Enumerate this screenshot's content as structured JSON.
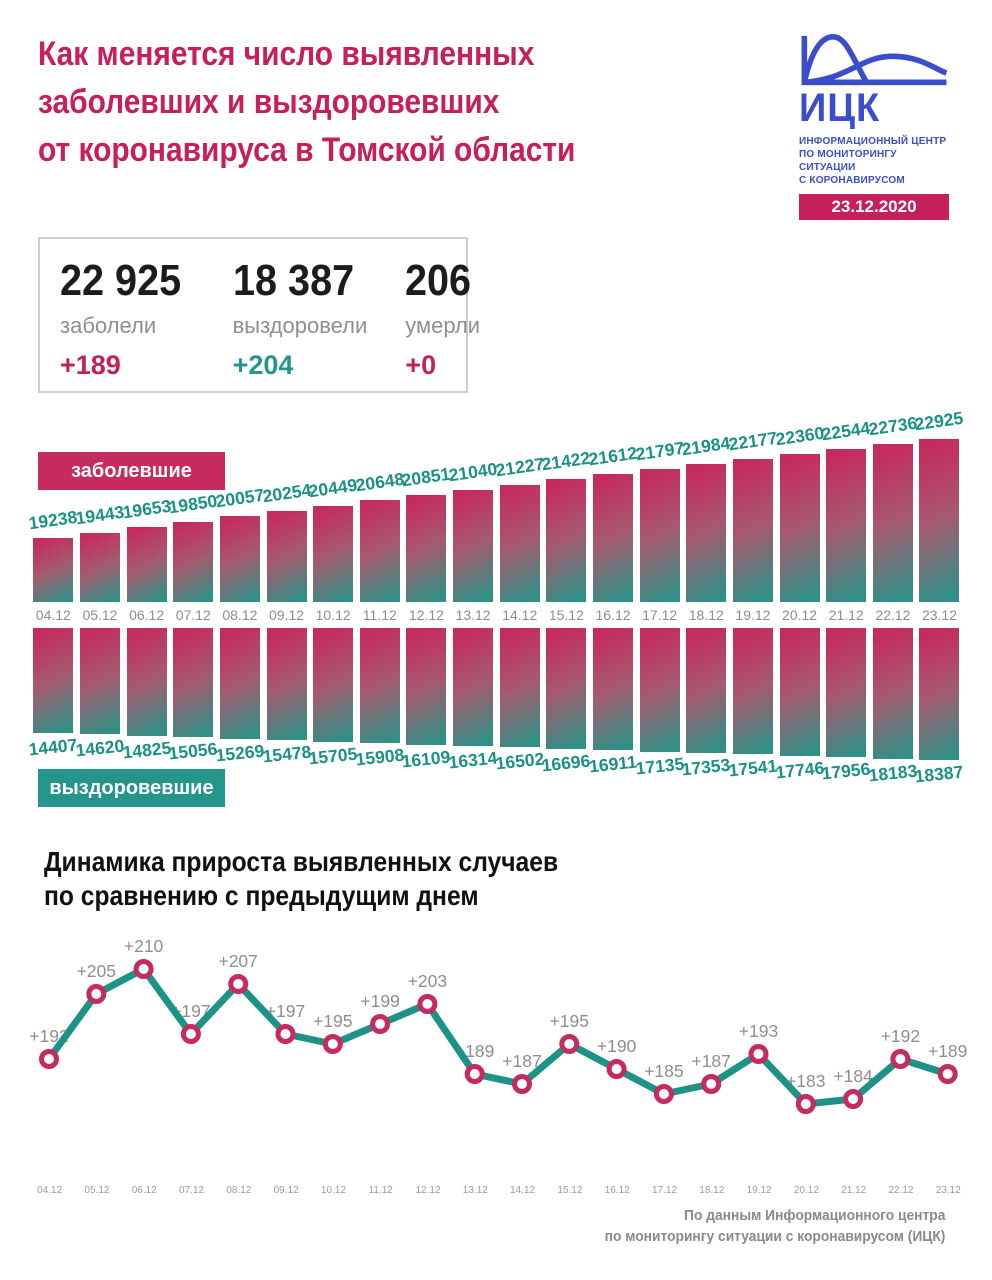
{
  "header": {
    "title_lines": [
      "Как меняется число выявленных",
      "заболевших и выздоровевших",
      "от коронавируса в Томской области"
    ],
    "logo": {
      "abbr": "ИЦК",
      "subtitle_lines": [
        "ИНФОРМАЦИОННЫЙ ЦЕНТР",
        "ПО МОНИТОРИНГУ СИТУАЦИИ",
        "С КОРОНАВИРУСОМ"
      ],
      "date_badge": "23.12.2020"
    }
  },
  "summary_cards": [
    {
      "value": "22 925",
      "label": "заболели",
      "delta": "+189",
      "delta_color": "#c2205a"
    },
    {
      "value": "18 387",
      "label": "выздоровели",
      "delta": "+204",
      "delta_color": "#23958a"
    },
    {
      "value": "206",
      "label": "умерли",
      "delta": "+0",
      "delta_color": "#c2205a"
    }
  ],
  "colors": {
    "crimson": "#c5205b",
    "teal": "#23958a",
    "bar_gradient": [
      "#c52c5e",
      "#a45a6f",
      "#2e9086"
    ],
    "value_label_teal": "#1b9185",
    "logo_blue": "#3a4ecb",
    "gray_text": "#8d8d8d"
  },
  "chart_data": [
    {
      "id": "infected_total",
      "type": "bar",
      "title": "заболевшие",
      "categories": [
        "04.12",
        "05.12",
        "06.12",
        "07.12",
        "08.12",
        "09.12",
        "10.12",
        "11.12",
        "12.12",
        "13.12",
        "14.12",
        "15.12",
        "16.12",
        "17.12",
        "18.12",
        "19.12",
        "20.12",
        "21.12",
        "22.12",
        "23.12"
      ],
      "values": [
        19238,
        19443,
        19653,
        19850,
        20057,
        20254,
        20449,
        20648,
        20851,
        21040,
        21227,
        21422,
        21612,
        21797,
        21984,
        22177,
        22360,
        22544,
        22736,
        22925
      ],
      "orientation": "up",
      "ylim": [
        19238,
        22925
      ]
    },
    {
      "id": "recovered_total",
      "type": "bar",
      "title": "выздоровевшие",
      "categories": [
        "04.12",
        "05.12",
        "06.12",
        "07.12",
        "08.12",
        "09.12",
        "10.12",
        "11.12",
        "12.12",
        "13.12",
        "14.12",
        "15.12",
        "16.12",
        "17.12",
        "18.12",
        "19.12",
        "20.12",
        "21.12",
        "22.12",
        "23.12"
      ],
      "values": [
        14407,
        14620,
        14825,
        15056,
        15269,
        15478,
        15705,
        15908,
        16109,
        16314,
        16502,
        16696,
        16911,
        17135,
        17353,
        17541,
        17746,
        17956,
        18183,
        18387
      ],
      "orientation": "down",
      "ylim": [
        14407,
        18387
      ]
    },
    {
      "id": "daily_increase",
      "type": "line",
      "title": "Динамика прироста выявленных случаев по сравнению с предыдущим днем",
      "title_lines": [
        "Динамика прироста выявленных случаев",
        "по сравнению с предыдущим днем"
      ],
      "categories": [
        "04.12",
        "05.12",
        "06.12",
        "07.12",
        "08.12",
        "09.12",
        "10.12",
        "11.12",
        "12.12",
        "13.12",
        "14.12",
        "15.12",
        "16.12",
        "17.12",
        "18.12",
        "19.12",
        "20.12",
        "21.12",
        "22.12",
        "23.12"
      ],
      "values": [
        192,
        205,
        210,
        197,
        207,
        197,
        195,
        199,
        203,
        189,
        187,
        195,
        190,
        185,
        187,
        193,
        183,
        184,
        192,
        189
      ],
      "point_labels": [
        "+192",
        "+205",
        "+210",
        "+197",
        "+207",
        "+197",
        "+195",
        "+199",
        "+203",
        "+189",
        "+187",
        "+195",
        "+190",
        "+185",
        "+187",
        "+193",
        "+183",
        "+184",
        "+192",
        "+189"
      ],
      "ylim": [
        180,
        212
      ],
      "grid": false,
      "legend": "none"
    }
  ],
  "footer": {
    "lines": [
      "По данным Информационного центра",
      "по мониторингу ситуации с коронавирусом (ИЦК)"
    ]
  }
}
